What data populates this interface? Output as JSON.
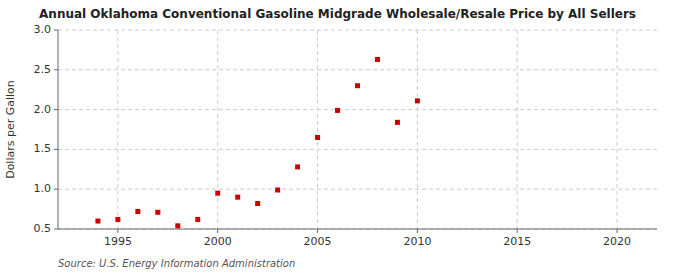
{
  "chart_data": {
    "type": "scatter",
    "title": "Annual Oklahoma Conventional Gasoline Midgrade Wholesale/Resale Price by All Sellers",
    "y_label": "Dollars per Gallon",
    "source": "Source: U.S. Energy Information Administration",
    "x": [
      1994,
      1995,
      1996,
      1997,
      1998,
      1999,
      2000,
      2001,
      2002,
      2003,
      2004,
      2005,
      2006,
      2007,
      2008,
      2009,
      2010
    ],
    "values": [
      0.6,
      0.62,
      0.72,
      0.71,
      0.54,
      0.62,
      0.95,
      0.9,
      0.82,
      0.99,
      1.28,
      1.65,
      1.99,
      2.3,
      2.63,
      1.84,
      2.11
    ],
    "color": "#cc0000",
    "marker": "square",
    "xlim": [
      1992,
      2022
    ],
    "ylim": [
      0.5,
      3.0
    ],
    "xticks": [
      1995,
      2000,
      2005,
      2010,
      2015,
      2020
    ],
    "yticks": [
      0.5,
      {
        "value": 1.0,
        "label": "1.0"
      },
      1.5,
      {
        "value": 2.0,
        "label": "2.0"
      },
      2.5,
      {
        "value": 3.0,
        "label": "3.0"
      }
    ],
    "grid": true
  }
}
